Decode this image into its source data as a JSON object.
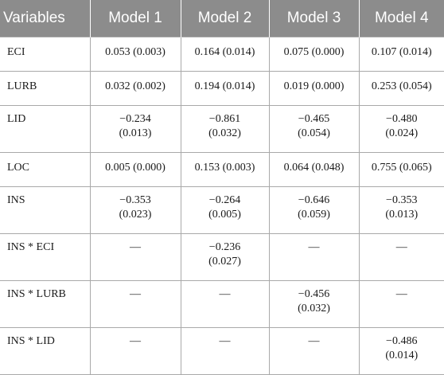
{
  "table": {
    "headers": [
      "Variables",
      "Model 1",
      "Model 2",
      "Model 3",
      "Model 4"
    ],
    "rows": [
      {
        "variable": "ECI",
        "cells": [
          [
            "0.053 (0.003)"
          ],
          [
            "0.164 (0.014)"
          ],
          [
            "0.075 (0.000)"
          ],
          [
            "0.107 (0.014)"
          ]
        ]
      },
      {
        "variable": "LURB",
        "cells": [
          [
            "0.032 (0.002)"
          ],
          [
            "0.194 (0.014)"
          ],
          [
            "0.019 (0.000)"
          ],
          [
            "0.253 (0.054)"
          ]
        ]
      },
      {
        "variable": "LID",
        "cells": [
          [
            "−0.234",
            "(0.013)"
          ],
          [
            "−0.861",
            "(0.032)"
          ],
          [
            "−0.465",
            "(0.054)"
          ],
          [
            "−0.480",
            "(0.024)"
          ]
        ]
      },
      {
        "variable": "LOC",
        "cells": [
          [
            "0.005 (0.000)"
          ],
          [
            "0.153 (0.003)"
          ],
          [
            "0.064 (0.048)"
          ],
          [
            "0.755 (0.065)"
          ]
        ]
      },
      {
        "variable": "INS",
        "cells": [
          [
            "−0.353",
            "(0.023)"
          ],
          [
            "−0.264",
            "(0.005)"
          ],
          [
            "−0.646",
            "(0.059)"
          ],
          [
            "−0.353",
            "(0.013)"
          ]
        ]
      },
      {
        "variable": "INS * ECI",
        "cells": [
          [
            "—"
          ],
          [
            "−0.236",
            "(0.027)"
          ],
          [
            "—"
          ],
          [
            "—"
          ]
        ]
      },
      {
        "variable": "INS * LURB",
        "cells": [
          [
            "—"
          ],
          [
            "—"
          ],
          [
            "−0.456",
            "(0.032)"
          ],
          [
            "—"
          ]
        ]
      },
      {
        "variable": "INS * LID",
        "cells": [
          [
            "—"
          ],
          [
            "—"
          ],
          [
            "—"
          ],
          [
            "−0.486",
            "(0.014)"
          ]
        ]
      }
    ]
  },
  "colors": {
    "header_background": "#8c8c8c",
    "header_text": "#ffffff",
    "grid_lines": "#a9a9a9",
    "body_text": "#1a1a1a"
  }
}
